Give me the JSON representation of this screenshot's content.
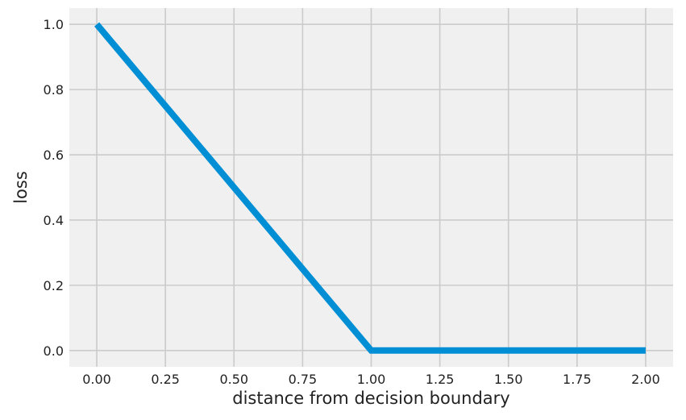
{
  "chart_data": {
    "type": "line",
    "title": "",
    "xlabel": "distance from decision boundary",
    "ylabel": "loss",
    "xlim": [
      -0.1,
      2.1
    ],
    "ylim": [
      -0.05,
      1.05
    ],
    "xticks": [
      0.0,
      0.25,
      0.5,
      0.75,
      1.0,
      1.25,
      1.5,
      1.75,
      2.0
    ],
    "xtick_labels": [
      "0.00",
      "0.25",
      "0.50",
      "0.75",
      "1.00",
      "1.25",
      "1.50",
      "1.75",
      "2.00"
    ],
    "yticks": [
      0.0,
      0.2,
      0.4,
      0.6,
      0.8,
      1.0
    ],
    "ytick_labels": [
      "0.0",
      "0.2",
      "0.4",
      "0.6",
      "0.8",
      "1.0"
    ],
    "grid": true,
    "series": [
      {
        "x": [
          0.0,
          1.0,
          2.0
        ],
        "y": [
          1.0,
          0.0,
          0.0
        ],
        "color": "#008fd5"
      }
    ],
    "colors": {
      "plot_background": "#f0f0f0",
      "grid": "#cbcbcb",
      "line": "#008fd5"
    }
  }
}
